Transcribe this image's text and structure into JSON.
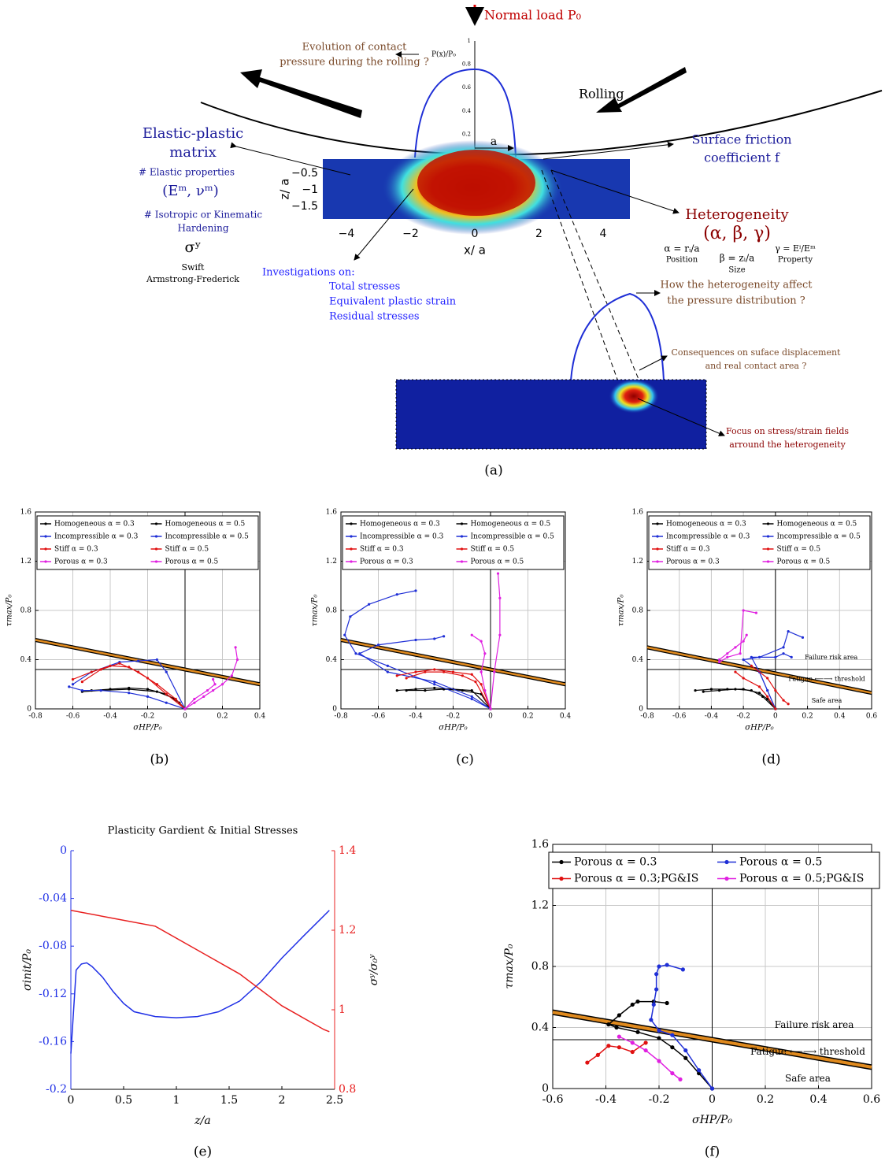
{
  "diagram": {
    "normal_load": "Normal load P₀",
    "pressure_question": [
      "Evolution of contact",
      "pressure during the rolling ?"
    ],
    "pressure_axis_label": "P(x)/P₀",
    "pressure_ticks": [
      "0",
      "0.2",
      "0.4",
      "0.6",
      "0.8",
      "1"
    ],
    "rolling": "Rolling",
    "matrix_title": [
      "Elastic-plastic",
      "matrix"
    ],
    "elastic_properties": "# Elastic properties",
    "elastic_symbol": "(Eᵐ, νᵐ)",
    "hardening": [
      "# Isotropic or Kinematic",
      "Hardening"
    ],
    "yield_symbol": "σʸ",
    "hardening_models": [
      "Swift",
      "Armstrong-Frederick"
    ],
    "friction": [
      "Surface friction",
      "coefficient f"
    ],
    "a_label": "a",
    "heterogeneity": "Heterogeneity",
    "heterogeneity_params": "(α, β, γ)",
    "alpha": "α = rᵢ/a",
    "alpha_label": "Position",
    "beta": "β = zᵢ/a",
    "beta_label": "Size",
    "gamma": "γ = Eⁱ/Eᵐ",
    "gamma_label": "Property",
    "investigations": {
      "title": "Investigations on:",
      "items": [
        "Total stresses",
        "Equivalent plastic strain",
        "Residual stresses"
      ]
    },
    "pressure_effect": [
      "How the heterogeneity affect",
      "the pressure distribution ?"
    ],
    "consequences": [
      "Consequences on suface displacement",
      "and real contact area ?"
    ],
    "focus": [
      "Focus on stress/strain fields",
      "arround the heterogeneity"
    ],
    "z_label": "z/ a",
    "z_ticks": [
      "−0.5",
      "−1",
      "−1.5"
    ],
    "x_label": "x/ a",
    "x_ticks": [
      "−4",
      "−2",
      "0",
      "2",
      "4"
    ],
    "caption": "(a)"
  },
  "chart_data": [
    {
      "type": "line",
      "caption": "(b)",
      "xlabel": "σHP/P₀",
      "ylabel": "τmax/P₀",
      "grid": true,
      "legend": "top",
      "xlim": [
        -0.8,
        0.4
      ],
      "xticks": [
        -0.8,
        -0.6,
        -0.4,
        -0.2,
        0,
        0.2,
        0.4
      ],
      "ylim": [
        0,
        1.6
      ],
      "yticks": [
        0,
        0.4,
        0.8,
        1.2,
        1.6
      ],
      "vline": 0,
      "hline": 0.32,
      "threshold": {
        "x": [
          -0.8,
          0.4
        ],
        "values": [
          0.56,
          0.2
        ],
        "color": "#e08a1e"
      },
      "series": [
        {
          "name": "Homogeneous α = 0.3",
          "color": "#000000",
          "x": [
            -0.5,
            -0.4,
            -0.3,
            -0.2,
            -0.1,
            -0.03,
            0
          ],
          "values": [
            0.15,
            0.16,
            0.17,
            0.16,
            0.12,
            0.05,
            0
          ]
        },
        {
          "name": "Homogeneous α = 0.5",
          "color": "#000000",
          "x": [
            -0.55,
            -0.45,
            -0.3,
            -0.15,
            -0.05,
            0
          ],
          "values": [
            0.14,
            0.15,
            0.16,
            0.14,
            0.08,
            0
          ]
        },
        {
          "name": "Incompressible α = 0.3",
          "color": "#1f2fd6",
          "x": [
            -0.62,
            -0.55,
            -0.45,
            -0.3,
            -0.2,
            -0.1,
            0
          ],
          "values": [
            0.18,
            0.15,
            0.15,
            0.13,
            0.1,
            0.05,
            0
          ]
        },
        {
          "name": "Incompressible α = 0.5",
          "color": "#1f2fd6",
          "x": [
            -0.6,
            -0.5,
            -0.35,
            -0.25,
            -0.15,
            -0.1,
            0
          ],
          "values": [
            0.2,
            0.3,
            0.38,
            0.39,
            0.4,
            0.3,
            0
          ]
        },
        {
          "name": "Stiff α = 0.3",
          "color": "#e01010",
          "x": [
            -0.6,
            -0.5,
            -0.4,
            -0.3,
            -0.2,
            -0.1,
            0
          ],
          "values": [
            0.24,
            0.3,
            0.35,
            0.34,
            0.25,
            0.12,
            0
          ]
        },
        {
          "name": "Stiff α = 0.5",
          "color": "#e01010",
          "x": [
            -0.55,
            -0.45,
            -0.35,
            -0.25,
            -0.15,
            -0.05,
            0
          ],
          "values": [
            0.22,
            0.32,
            0.37,
            0.3,
            0.2,
            0.08,
            0
          ]
        },
        {
          "name": "Porous α = 0.3",
          "color": "#e020e0",
          "x": [
            0,
            0.05,
            0.1,
            0.15,
            0.2,
            0.25,
            0.28,
            0.27
          ],
          "values": [
            0,
            0.05,
            0.1,
            0.15,
            0.2,
            0.27,
            0.4,
            0.5
          ]
        },
        {
          "name": "Porous α = 0.5",
          "color": "#e020e0",
          "x": [
            0,
            0.05,
            0.12,
            0.16,
            0.15
          ],
          "values": [
            0,
            0.08,
            0.15,
            0.2,
            0.24
          ]
        }
      ]
    },
    {
      "type": "line",
      "caption": "(c)",
      "xlabel": "σHP/P₀",
      "ylabel": "τmax/P₀",
      "grid": true,
      "legend": "top",
      "xlim": [
        -0.8,
        0.4
      ],
      "xticks": [
        -0.8,
        -0.6,
        -0.4,
        -0.2,
        0,
        0.2,
        0.4
      ],
      "ylim": [
        0,
        1.6
      ],
      "yticks": [
        0,
        0.4,
        0.8,
        1.2,
        1.6
      ],
      "vline": 0,
      "hline": 0.32,
      "threshold": {
        "x": [
          -0.8,
          0.4
        ],
        "values": [
          0.56,
          0.2
        ],
        "color": "#e08a1e"
      },
      "series": [
        {
          "name": "Homogeneous α = 0.3",
          "color": "#000000",
          "x": [
            -0.5,
            -0.4,
            -0.3,
            -0.2,
            -0.1,
            0
          ],
          "values": [
            0.15,
            0.16,
            0.17,
            0.16,
            0.15,
            0
          ]
        },
        {
          "name": "Homogeneous α = 0.5",
          "color": "#000000",
          "x": [
            -0.45,
            -0.35,
            -0.25,
            -0.15,
            -0.05,
            0
          ],
          "values": [
            0.15,
            0.15,
            0.16,
            0.15,
            0.12,
            0
          ]
        },
        {
          "name": "Incompressible α = 0.3",
          "color": "#1f2fd6",
          "x": [
            0,
            -0.1,
            -0.3,
            -0.55,
            -0.7,
            -0.6,
            -0.4,
            -0.3,
            -0.25
          ],
          "values": [
            0,
            0.1,
            0.22,
            0.3,
            0.45,
            0.52,
            0.56,
            0.57,
            0.59
          ]
        },
        {
          "name": "Incompressible α = 0.5",
          "color": "#1f2fd6",
          "x": [
            0,
            -0.1,
            -0.3,
            -0.55,
            -0.72,
            -0.78,
            -0.75,
            -0.65,
            -0.5,
            -0.4
          ],
          "values": [
            0,
            0.08,
            0.2,
            0.35,
            0.45,
            0.6,
            0.75,
            0.85,
            0.93,
            0.96
          ]
        },
        {
          "name": "Stiff α = 0.3",
          "color": "#e01010",
          "x": [
            -0.5,
            -0.4,
            -0.3,
            -0.2,
            -0.1,
            -0.05,
            0
          ],
          "values": [
            0.27,
            0.3,
            0.32,
            0.3,
            0.28,
            0.2,
            0
          ]
        },
        {
          "name": "Stiff α = 0.5",
          "color": "#e01010",
          "x": [
            -0.45,
            -0.35,
            -0.25,
            -0.15,
            -0.08,
            0
          ],
          "values": [
            0.25,
            0.3,
            0.3,
            0.27,
            0.22,
            0
          ]
        },
        {
          "name": "Porous α = 0.3",
          "color": "#e020e0",
          "x": [
            0,
            -0.03,
            -0.05,
            -0.03,
            -0.05,
            -0.1
          ],
          "values": [
            0,
            0.15,
            0.3,
            0.45,
            0.55,
            0.6
          ]
        },
        {
          "name": "Porous α = 0.5",
          "color": "#e020e0",
          "x": [
            0,
            0.02,
            0.05,
            0.05,
            0.04
          ],
          "values": [
            0,
            0.3,
            0.6,
            0.9,
            1.1
          ]
        }
      ]
    },
    {
      "type": "line",
      "caption": "(d)",
      "xlabel": "σHP/P₀",
      "ylabel": "τmax/P₀",
      "grid": true,
      "legend": "top",
      "xlim": [
        -0.8,
        0.6
      ],
      "xticks": [
        -0.8,
        -0.6,
        -0.4,
        -0.2,
        0,
        0.2,
        0.4,
        0.6
      ],
      "ylim": [
        0,
        1.6
      ],
      "yticks": [
        0,
        0.4,
        0.8,
        1.2,
        1.6
      ],
      "vline": 0,
      "hline": 0.32,
      "threshold": {
        "x": [
          -0.8,
          0.6
        ],
        "values": [
          0.5,
          0.13
        ],
        "color": "#e08a1e"
      },
      "annotations": [
        "Failure risk area",
        "Fatigue ⟵⟶ threshold",
        "Safe area"
      ],
      "series": [
        {
          "name": "Homogeneous α = 0.3",
          "color": "#000000",
          "x": [
            -0.5,
            -0.4,
            -0.3,
            -0.2,
            -0.1,
            -0.05,
            0
          ],
          "values": [
            0.15,
            0.16,
            0.16,
            0.16,
            0.13,
            0.08,
            0
          ]
        },
        {
          "name": "Homogeneous α = 0.5",
          "color": "#000000",
          "x": [
            -0.45,
            -0.35,
            -0.25,
            -0.15,
            -0.08,
            0
          ],
          "values": [
            0.14,
            0.15,
            0.16,
            0.15,
            0.1,
            0
          ]
        },
        {
          "name": "Incompressible α = 0.3",
          "color": "#1f2fd6",
          "x": [
            0,
            -0.05,
            -0.1,
            -0.15,
            0,
            0.05,
            0.1
          ],
          "values": [
            0,
            0.15,
            0.3,
            0.42,
            0.42,
            0.45,
            0.42
          ]
        },
        {
          "name": "Incompressible α = 0.5",
          "color": "#1f2fd6",
          "x": [
            0,
            -0.05,
            -0.1,
            -0.2,
            -0.1,
            0.05,
            0.08,
            0.17
          ],
          "values": [
            0,
            0.15,
            0.3,
            0.4,
            0.42,
            0.5,
            0.63,
            0.58
          ]
        },
        {
          "name": "Stiff α = 0.3",
          "color": "#e01010",
          "x": [
            -0.25,
            -0.2,
            -0.1,
            -0.05,
            0
          ],
          "values": [
            0.3,
            0.25,
            0.18,
            0.1,
            0
          ]
        },
        {
          "name": "Stiff α = 0.5",
          "color": "#e01010",
          "x": [
            -0.15,
            -0.05,
            0,
            0.05,
            0.08
          ],
          "values": [
            0.35,
            0.25,
            0.15,
            0.07,
            0.04
          ]
        },
        {
          "name": "Porous α = 0.3",
          "color": "#e020e0",
          "x": [
            -0.35,
            -0.3,
            -0.22,
            -0.2,
            -0.12
          ],
          "values": [
            0.38,
            0.42,
            0.45,
            0.8,
            0.78
          ]
        },
        {
          "name": "Porous α = 0.5",
          "color": "#e020e0",
          "x": [
            -0.35,
            -0.3,
            -0.25,
            -0.2,
            -0.18
          ],
          "values": [
            0.4,
            0.45,
            0.5,
            0.55,
            0.6
          ]
        }
      ]
    },
    {
      "type": "line",
      "caption": "(e)",
      "title": "Plasticity Gardient & Initial Stresses",
      "xlabel": "z/a",
      "ylabel": "σinit/P₀",
      "y2label": "σʸ/σ₀ʸ",
      "grid": false,
      "xlim": [
        0,
        2.5
      ],
      "xticks": [
        0,
        0.5,
        1,
        1.5,
        2,
        2.5
      ],
      "ylim": [
        -0.2,
        0
      ],
      "yticks": [
        0,
        -0.04,
        -0.08,
        -0.12,
        -0.16,
        -0.2
      ],
      "y2lim": [
        0.8,
        1.4
      ],
      "y2ticks": [
        0.8,
        1,
        1.2,
        1.4
      ],
      "series": [
        {
          "color": "#1f2fe6",
          "x": [
            0,
            0.05,
            0.1,
            0.15,
            0.2,
            0.3,
            0.4,
            0.5,
            0.6,
            0.8,
            1.0,
            1.2,
            1.4,
            1.6,
            1.8,
            2.0,
            2.2,
            2.45
          ],
          "values": [
            -0.17,
            -0.1,
            -0.095,
            -0.094,
            -0.097,
            -0.106,
            -0.118,
            -0.128,
            -0.135,
            -0.139,
            -0.14,
            -0.139,
            -0.135,
            -0.126,
            -0.11,
            -0.09,
            -0.072,
            -0.05
          ]
        },
        {
          "color": "#e82020",
          "axis": "y2",
          "x": [
            0,
            0.4,
            0.8,
            1.2,
            1.6,
            2.0,
            2.4,
            2.45
          ],
          "values": [
            1.25,
            1.23,
            1.21,
            1.15,
            1.09,
            1.01,
            0.95,
            0.945
          ]
        }
      ]
    },
    {
      "type": "line",
      "caption": "(f)",
      "xlabel": "σHP/P₀",
      "ylabel": "τmax/P₀",
      "grid": true,
      "legend": "top",
      "xlim": [
        -0.6,
        0.6
      ],
      "xticks": [
        -0.6,
        -0.4,
        -0.2,
        0,
        0.2,
        0.4,
        0.6
      ],
      "ylim": [
        0,
        1.6
      ],
      "yticks": [
        0,
        0.4,
        0.8,
        1.2,
        1.6
      ],
      "vline": 0,
      "hline": 0.32,
      "threshold": {
        "x": [
          -0.6,
          0.6
        ],
        "values": [
          0.5,
          0.14
        ],
        "color": "#e08a1e"
      },
      "annotations": [
        "Failure risk area",
        "Fatigue ⟵⟶ threshold",
        "Safe area"
      ],
      "series": [
        {
          "name": "Porous α = 0.3",
          "color": "#000000",
          "x": [
            0,
            -0.05,
            -0.1,
            -0.15,
            -0.2,
            -0.28,
            -0.36,
            -0.39,
            -0.35,
            -0.3,
            -0.28,
            -0.22,
            -0.17
          ],
          "values": [
            0,
            0.1,
            0.2,
            0.27,
            0.33,
            0.37,
            0.4,
            0.42,
            0.48,
            0.55,
            0.57,
            0.57,
            0.56
          ]
        },
        {
          "name": "Porous α = 0.5",
          "color": "#1f2fd6",
          "x": [
            0,
            -0.05,
            -0.1,
            -0.15,
            -0.2,
            -0.23,
            -0.22,
            -0.21,
            -0.21,
            -0.2,
            -0.17,
            -0.11
          ],
          "values": [
            0,
            0.12,
            0.25,
            0.35,
            0.38,
            0.45,
            0.55,
            0.65,
            0.75,
            0.8,
            0.81,
            0.78
          ]
        },
        {
          "name": "Porous α = 0.3;PG&IS",
          "color": "#e01010",
          "x": [
            -0.47,
            -0.43,
            -0.39,
            -0.35,
            -0.3,
            -0.25
          ],
          "values": [
            0.17,
            0.22,
            0.28,
            0.27,
            0.24,
            0.3
          ]
        },
        {
          "name": "Porous α = 0.5;PG&IS",
          "color": "#e020e0",
          "x": [
            -0.35,
            -0.3,
            -0.25,
            -0.2,
            -0.15,
            -0.12
          ],
          "values": [
            0.34,
            0.3,
            0.25,
            0.18,
            0.1,
            0.06
          ]
        }
      ]
    }
  ]
}
